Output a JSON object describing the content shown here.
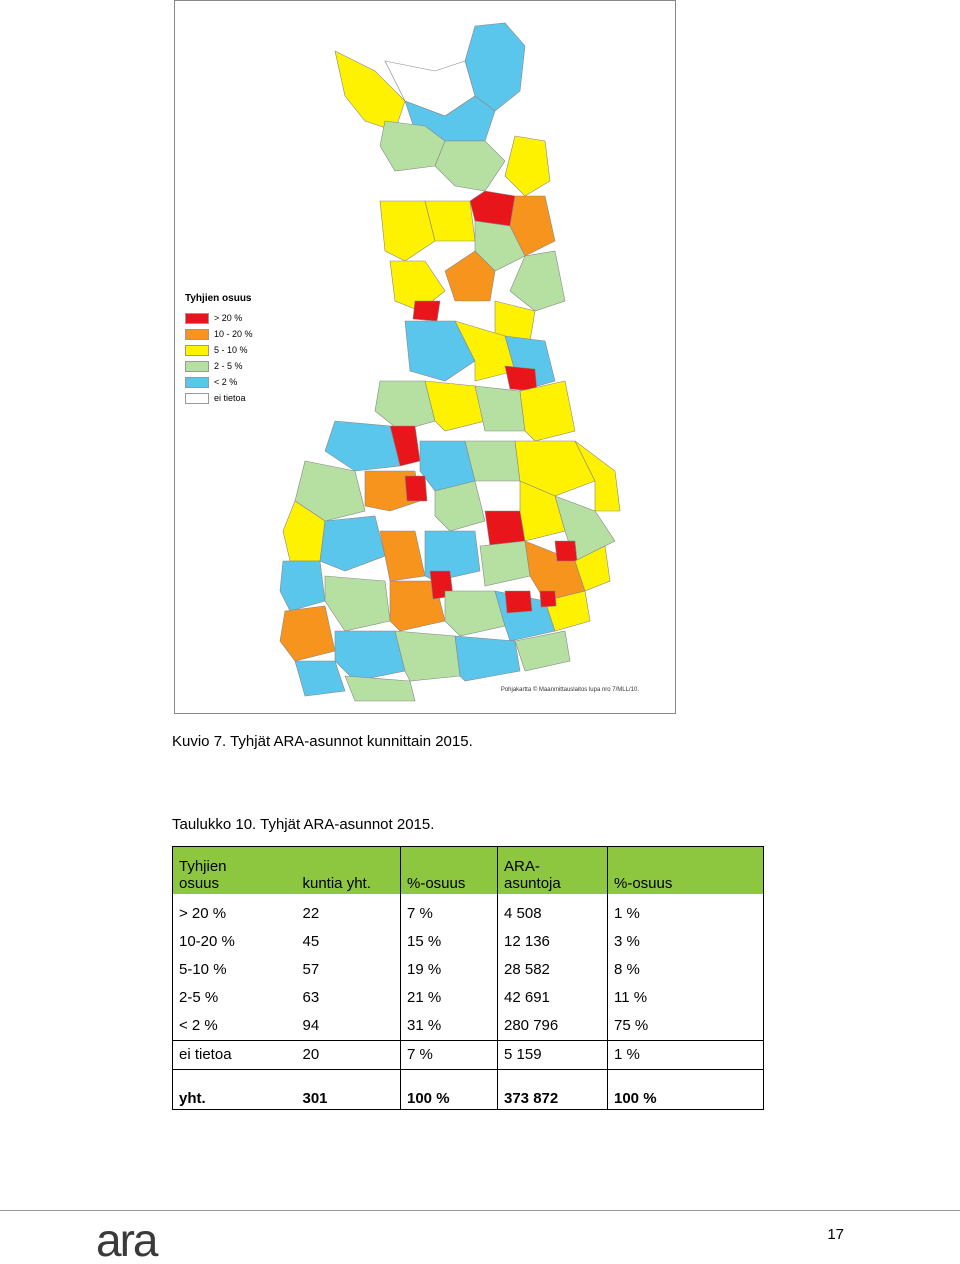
{
  "map": {
    "legend": {
      "title": "Tyhjien osuus",
      "items": [
        {
          "label": "> 20 %",
          "color": "#e8161b"
        },
        {
          "label": "10 - 20 %",
          "color": "#f7941d"
        },
        {
          "label": "5 - 10 %",
          "color": "#fff200"
        },
        {
          "label": "2 - 5 %",
          "color": "#b5e0a2"
        },
        {
          "label": "< 2 %",
          "color": "#5bc6eb"
        },
        {
          "label": "ei tietoa",
          "color": "#ffffff"
        }
      ]
    },
    "credit": "Pohjakartta © Maanmittauslaitos lupa nro 7/MLL/10."
  },
  "figure_caption": "Kuvio 7. Tyhjät ARA-asunnot kunnittain 2015.",
  "table_caption": "Taulukko 10. Tyhjät ARA-asunnot 2015.",
  "table": {
    "header": {
      "c1_line1": "Tyhjien",
      "c1_line2": "osuus",
      "c2": "kuntia yht.",
      "c3": "%-osuus",
      "c4_line1": "ARA-",
      "c4_line2": "asuntoja",
      "c5": "%-osuus"
    },
    "rows": [
      [
        "> 20 %",
        "22",
        "7 %",
        "4 508",
        "1 %"
      ],
      [
        "10-20 %",
        "45",
        "15 %",
        "12 136",
        "3 %"
      ],
      [
        "5-10 %",
        "57",
        "19 %",
        "28 582",
        "8 %"
      ],
      [
        "2-5 %",
        "63",
        "21 %",
        "42 691",
        "11 %"
      ],
      [
        "< 2 %",
        "94",
        "31 %",
        "280 796",
        "75 %"
      ],
      [
        "ei tietoa",
        "20",
        "7 %",
        "5 159",
        "1 %"
      ]
    ],
    "total": [
      "yht.",
      "301",
      "100 %",
      "373 872",
      "100 %"
    ]
  },
  "footer": {
    "logo_text": "ara",
    "page_number": "17"
  }
}
